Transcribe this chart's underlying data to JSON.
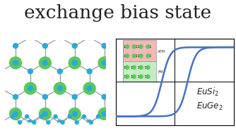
{
  "title": "exchange bias state",
  "title_fontsize": 19,
  "title_color": "#222222",
  "bg_color": "#ffffff",
  "atom_eu_color": "#5dc85d",
  "atom_si_color": "#29aadd",
  "bond_color": "#999999",
  "hysteresis_color": "#4472c4",
  "afm_bg": "#f5b8b8",
  "fm_bg": "#c5ecc5",
  "arrow_color": "#111111",
  "plot_bg": "#ffffff"
}
